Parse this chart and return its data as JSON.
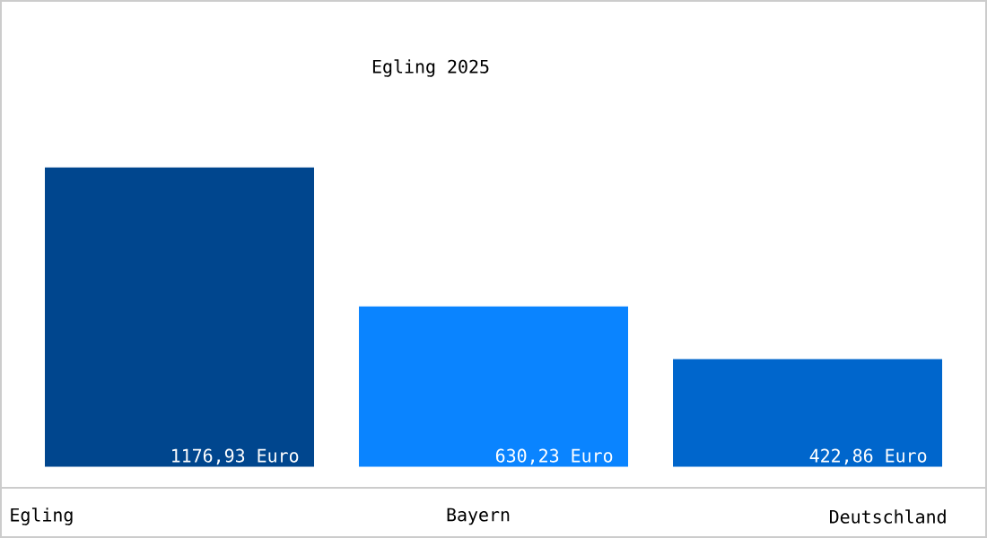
{
  "chart_data": {
    "type": "bar",
    "title": "Egling 2025",
    "categories": [
      "Egling",
      "Bayern",
      "Deutschland"
    ],
    "values": [
      1176.93,
      630.23,
      422.86
    ],
    "colors": [
      "#00468e",
      "#0a84ff",
      "#0066cc"
    ],
    "value_labels": [
      "1176,93 Euro",
      "630,23 Euro",
      "422,86 Euro"
    ]
  }
}
